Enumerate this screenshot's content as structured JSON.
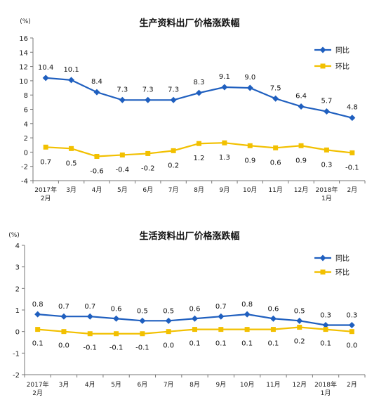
{
  "chart_data": [
    {
      "type": "line",
      "title": "生产资料出厂价格涨跌幅",
      "unit": "(%)",
      "categories": [
        "2017年2月",
        "3月",
        "4月",
        "5月",
        "6月",
        "7月",
        "8月",
        "9月",
        "10月",
        "11月",
        "12月",
        "2018年1月",
        "2月"
      ],
      "category_lines": [
        [
          "2017年",
          "2月"
        ],
        [
          "3月"
        ],
        [
          "4月"
        ],
        [
          "5月"
        ],
        [
          "6月"
        ],
        [
          "7月"
        ],
        [
          "8月"
        ],
        [
          "9月"
        ],
        [
          "10月"
        ],
        [
          "11月"
        ],
        [
          "12月"
        ],
        [
          "2018年",
          "1月"
        ],
        [
          "2月"
        ]
      ],
      "ylim": [
        -4,
        16
      ],
      "yticks": [
        -4,
        -2,
        0,
        2,
        4,
        6,
        8,
        10,
        12,
        14,
        16
      ],
      "grid": false,
      "legend_position": "top-right",
      "series": [
        {
          "name": "同比",
          "color": "#1f5fbf",
          "marker": "diamond",
          "values": [
            10.4,
            10.1,
            8.4,
            7.3,
            7.3,
            7.3,
            8.3,
            9.1,
            9.0,
            7.5,
            6.4,
            5.7,
            4.8
          ]
        },
        {
          "name": "环比",
          "color": "#f2c000",
          "marker": "square",
          "values": [
            0.7,
            0.5,
            -0.6,
            -0.4,
            -0.2,
            0.2,
            1.2,
            1.3,
            0.9,
            0.6,
            0.9,
            0.3,
            -0.1
          ]
        }
      ]
    },
    {
      "type": "line",
      "title": "生活资料出厂价格涨跌幅",
      "unit": "(%)",
      "categories": [
        "2017年2月",
        "3月",
        "4月",
        "5月",
        "6月",
        "7月",
        "8月",
        "9月",
        "10月",
        "11月",
        "12月",
        "2018年1月",
        "2月"
      ],
      "category_lines": [
        [
          "2017年",
          "2月"
        ],
        [
          "3月"
        ],
        [
          "4月"
        ],
        [
          "5月"
        ],
        [
          "6月"
        ],
        [
          "7月"
        ],
        [
          "8月"
        ],
        [
          "9月"
        ],
        [
          "10月"
        ],
        [
          "11月"
        ],
        [
          "12月"
        ],
        [
          "2018年",
          "1月"
        ],
        [
          "2月"
        ]
      ],
      "ylim": [
        -2,
        4
      ],
      "yticks": [
        -2,
        -1,
        0,
        1,
        2,
        3,
        4
      ],
      "grid": false,
      "legend_position": "top-right",
      "series": [
        {
          "name": "同比",
          "color": "#1f5fbf",
          "marker": "diamond",
          "values": [
            0.8,
            0.7,
            0.7,
            0.6,
            0.5,
            0.5,
            0.6,
            0.7,
            0.8,
            0.6,
            0.5,
            0.3,
            0.3
          ]
        },
        {
          "name": "环比",
          "color": "#f2c000",
          "marker": "square",
          "values": [
            0.1,
            0.0,
            -0.1,
            -0.1,
            -0.1,
            0.0,
            0.1,
            0.1,
            0.1,
            0.1,
            0.2,
            0.1,
            0.0
          ]
        }
      ]
    }
  ]
}
